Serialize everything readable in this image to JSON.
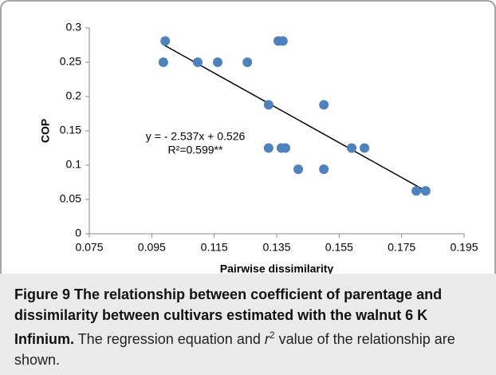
{
  "chart_data": {
    "type": "scatter",
    "x_label": "Pairwise dissimilarity",
    "y_label": "COP",
    "color": "#4f81bd",
    "x": [
      0.0993,
      0.0987,
      0.1097,
      0.1161,
      0.1256,
      0.1355,
      0.137,
      0.1324,
      0.1501,
      0.1324,
      0.1365,
      0.1378,
      0.159,
      0.1631,
      0.1419,
      0.1501,
      0.1797,
      0.1827
    ],
    "values": [
      0.281,
      0.25,
      0.25,
      0.25,
      0.25,
      0.281,
      0.281,
      0.188,
      0.188,
      0.125,
      0.125,
      0.125,
      0.125,
      0.125,
      0.094,
      0.094,
      0.0625,
      0.0625
    ],
    "xlim": [
      0.075,
      0.195
    ],
    "xticks": [
      0.075,
      0.095,
      0.115,
      0.135,
      0.155,
      0.175,
      0.195
    ],
    "ylim": [
      0,
      0.3
    ],
    "yticks": [
      0,
      0.05,
      0.1,
      0.15,
      0.2,
      0.25,
      0.3
    ],
    "trendline": {
      "slope": -2.537,
      "intercept": 0.526,
      "color": "#000000"
    },
    "annotations": [
      "y = - 2.537x + 0.526",
      "R²=0.599**"
    ]
  },
  "caption": {
    "label": "Figure 9",
    "title": "The relationship between coefficient of parentage and dissimilarity between cultivars estimated with the walnut 6 K Infinium.",
    "text_before": "The regression equation and",
    "italic": "r",
    "sup": "2",
    "text_after": "value of the relationship are shown."
  }
}
